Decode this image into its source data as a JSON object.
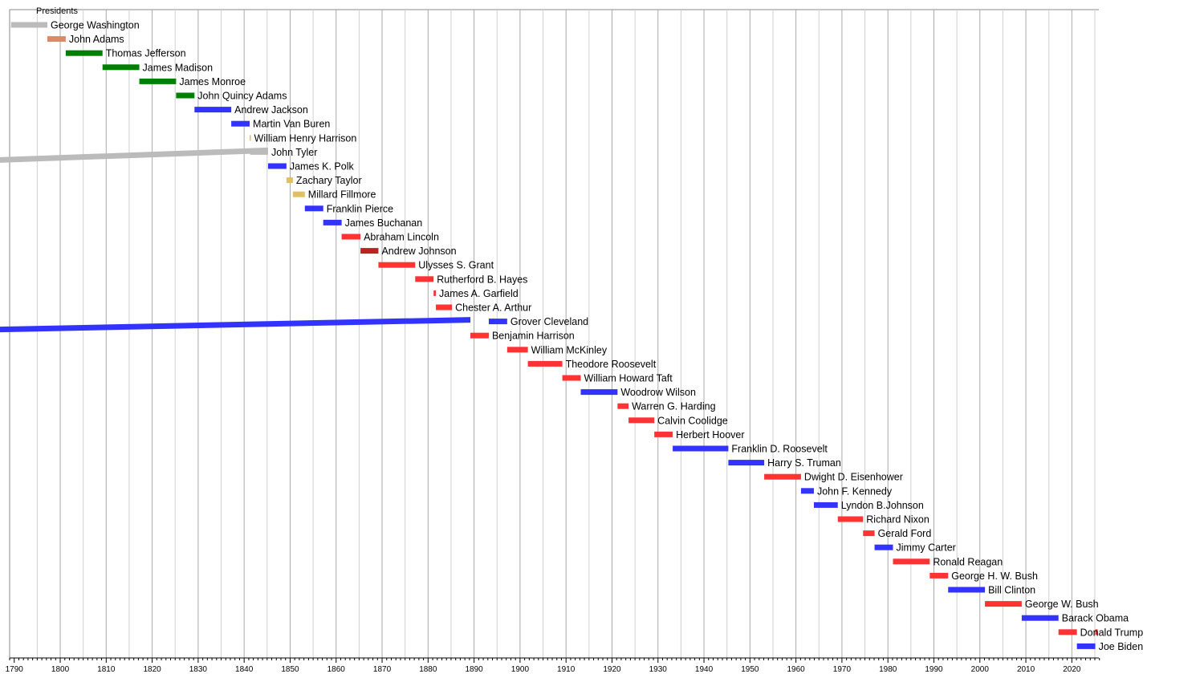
{
  "chart_data": {
    "type": "timeline",
    "title": "Presidents",
    "xlim": [
      1789,
      2026
    ],
    "x_ticks": [
      1790,
      1800,
      1810,
      1820,
      1830,
      1840,
      1850,
      1860,
      1870,
      1880,
      1890,
      1900,
      1910,
      1920,
      1930,
      1940,
      1950,
      1960,
      1970,
      1980,
      1990,
      2000,
      2010,
      2020
    ],
    "grid": "vertical",
    "bars": [
      {
        "name": "George Washington",
        "start": 1789.3,
        "end": 1797.2,
        "color": "#bbbbbb"
      },
      {
        "name": "John Adams",
        "start": 1797.2,
        "end": 1801.2,
        "color": "#dd8866"
      },
      {
        "name": "Thomas Jefferson",
        "start": 1801.2,
        "end": 1809.2,
        "color": "#008000"
      },
      {
        "name": "James Madison",
        "start": 1809.2,
        "end": 1817.2,
        "color": "#008000"
      },
      {
        "name": "James Monroe",
        "start": 1817.2,
        "end": 1825.2,
        "color": "#008000"
      },
      {
        "name": "John Quincy Adams",
        "start": 1825.2,
        "end": 1829.2,
        "color": "#008000"
      },
      {
        "name": "Andrew Jackson",
        "start": 1829.2,
        "end": 1837.2,
        "color": "#3333ff"
      },
      {
        "name": "Martin Van Buren",
        "start": 1837.2,
        "end": 1841.2,
        "color": "#3333ff"
      },
      {
        "name": "William Henry Harrison",
        "start": 1841.2,
        "end": 1841.3,
        "color": "#e0c060"
      },
      {
        "name": "John Tyler",
        "start": 1841.3,
        "end": 1845.2,
        "color": "#bbbbbb"
      },
      {
        "name": "James K. Polk",
        "start": 1845.2,
        "end": 1849.2,
        "color": "#3333ff"
      },
      {
        "name": "Zachary Taylor",
        "start": 1849.2,
        "end": 1850.6,
        "color": "#e0c060"
      },
      {
        "name": "Millard Fillmore",
        "start": 1850.6,
        "end": 1853.2,
        "color": "#e0c060"
      },
      {
        "name": "Franklin Pierce",
        "start": 1853.2,
        "end": 1857.2,
        "color": "#3333ff"
      },
      {
        "name": "James Buchanan",
        "start": 1857.2,
        "end": 1861.2,
        "color": "#3333ff"
      },
      {
        "name": "Abraham Lincoln",
        "start": 1861.2,
        "end": 1865.3,
        "color": "#ff3333"
      },
      {
        "name": "Andrew Johnson",
        "start": 1865.3,
        "end": 1869.2,
        "color": "#bb2222"
      },
      {
        "name": "Ulysses S. Grant",
        "start": 1869.2,
        "end": 1877.2,
        "color": "#ff3333"
      },
      {
        "name": "Rutherford B. Hayes",
        "start": 1877.2,
        "end": 1881.2,
        "color": "#ff3333"
      },
      {
        "name": "James A. Garfield",
        "start": 1881.2,
        "end": 1881.7,
        "color": "#ff3333"
      },
      {
        "name": "Chester A. Arthur",
        "start": 1881.7,
        "end": 1885.2,
        "color": "#ff3333"
      },
      {
        "name": "Grover Cleveland",
        "start": 1893.2,
        "end": 1897.2,
        "color": "#3333ff"
      },
      {
        "name": "Benjamin Harrison",
        "start": 1889.2,
        "end": 1893.2,
        "color": "#ff3333"
      },
      {
        "name": "William McKinley",
        "start": 1897.2,
        "end": 1901.7,
        "color": "#ff3333"
      },
      {
        "name": "Theodore Roosevelt",
        "start": 1901.7,
        "end": 1909.2,
        "color": "#ff3333"
      },
      {
        "name": "William Howard Taft",
        "start": 1909.2,
        "end": 1913.2,
        "color": "#ff3333"
      },
      {
        "name": "Woodrow Wilson",
        "start": 1913.2,
        "end": 1921.2,
        "color": "#3333ff"
      },
      {
        "name": "Warren G. Harding",
        "start": 1921.2,
        "end": 1923.6,
        "color": "#ff3333"
      },
      {
        "name": "Calvin Coolidge",
        "start": 1923.6,
        "end": 1929.2,
        "color": "#ff3333"
      },
      {
        "name": "Herbert Hoover",
        "start": 1929.2,
        "end": 1933.2,
        "color": "#ff3333"
      },
      {
        "name": "Franklin D. Roosevelt",
        "start": 1933.2,
        "end": 1945.3,
        "color": "#3333ff"
      },
      {
        "name": "Harry S. Truman",
        "start": 1945.3,
        "end": 1953.1,
        "color": "#3333ff"
      },
      {
        "name": "Dwight D. Eisenhower",
        "start": 1953.1,
        "end": 1961.1,
        "color": "#ff3333"
      },
      {
        "name": "John F. Kennedy",
        "start": 1961.1,
        "end": 1963.9,
        "color": "#3333ff"
      },
      {
        "name": "Lyndon B.Johnson",
        "start": 1963.9,
        "end": 1969.1,
        "color": "#3333ff"
      },
      {
        "name": "Richard Nixon",
        "start": 1969.1,
        "end": 1974.6,
        "color": "#ff3333"
      },
      {
        "name": "Gerald Ford",
        "start": 1974.6,
        "end": 1977.1,
        "color": "#ff3333"
      },
      {
        "name": "Jimmy Carter",
        "start": 1977.1,
        "end": 1981.1,
        "color": "#3333ff"
      },
      {
        "name": "Ronald Reagan",
        "start": 1981.1,
        "end": 1989.1,
        "color": "#ff3333"
      },
      {
        "name": "George H. W. Bush",
        "start": 1989.1,
        "end": 1993.1,
        "color": "#ff3333"
      },
      {
        "name": "Bill Clinton",
        "start": 1993.1,
        "end": 2001.1,
        "color": "#3333ff"
      },
      {
        "name": "George W. Bush",
        "start": 2001.1,
        "end": 2009.1,
        "color": "#ff3333"
      },
      {
        "name": "Barack Obama",
        "start": 2009.1,
        "end": 2017.1,
        "color": "#3333ff"
      },
      {
        "name": "Donald Trump",
        "start": 2017.1,
        "end": 2021.1,
        "color": "#ff3333"
      },
      {
        "name": "Joe Biden",
        "start": 2021.1,
        "end": 2025.1,
        "color": "#3333ff"
      }
    ],
    "extra_segments": [
      {
        "row": "John Tyler",
        "start": 1786,
        "end": 1845.2,
        "color": "#bbbbbb"
      },
      {
        "row": "Grover Cleveland",
        "start": 1786,
        "end": 1889.2,
        "color": "#3333ff"
      },
      {
        "row": "Donald Trump",
        "start": 2025.1,
        "end": 2025.5,
        "color": "#ff3333"
      }
    ]
  }
}
